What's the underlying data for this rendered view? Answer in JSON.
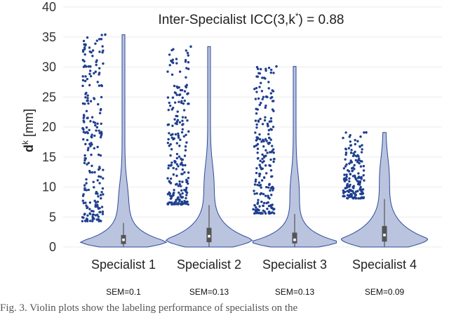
{
  "chart_data": {
    "type": "violin",
    "title_prefix": "Inter-Specialist ICC(3,k",
    "title_sup": "*",
    "title_suffix": ") = 0.88",
    "ylabel_main": "d",
    "ylabel_sup": "k",
    "ylabel_unit": " [mm]",
    "ylim": [
      0,
      40
    ],
    "yticks": [
      "0",
      "5",
      "10",
      "15",
      "20",
      "25",
      "30",
      "35",
      "40"
    ],
    "grid": true,
    "colors": {
      "violin_fill": "#b3bedc",
      "violin_edge": "#2d4a9b",
      "points": "#1f3f8f",
      "box": "#555555",
      "median": "#ffffff"
    },
    "categories": [
      "Specialist 1",
      "Specialist 2",
      "Specialist 3",
      "Specialist 4"
    ],
    "sem": [
      "SEM=0.1",
      "SEM=0.13",
      "SEM=0.13",
      "SEM=0.09"
    ],
    "series": [
      {
        "max": 35.4,
        "q1": 0.5,
        "median": 1.2,
        "q3": 2.0,
        "whisker_high": 4.0,
        "outlier_min": 4.3,
        "outlier_max": 35.4,
        "outlier_count": 220
      },
      {
        "max": 33.4,
        "q1": 0.8,
        "median": 1.8,
        "q3": 3.2,
        "whisker_high": 7.0,
        "outlier_min": 7.1,
        "outlier_max": 33.4,
        "outlier_count": 220
      },
      {
        "max": 30.1,
        "q1": 0.6,
        "median": 1.2,
        "q3": 2.4,
        "whisker_high": 5.5,
        "outlier_min": 5.6,
        "outlier_max": 30.1,
        "outlier_count": 220
      },
      {
        "max": 19.1,
        "q1": 0.9,
        "median": 2.0,
        "q3": 3.5,
        "whisker_high": 8.0,
        "outlier_min": 8.1,
        "outlier_max": 19.1,
        "outlier_count": 160
      }
    ]
  },
  "caption": "Fig. 3.  Violin plots show the labeling performance of specialists on the"
}
